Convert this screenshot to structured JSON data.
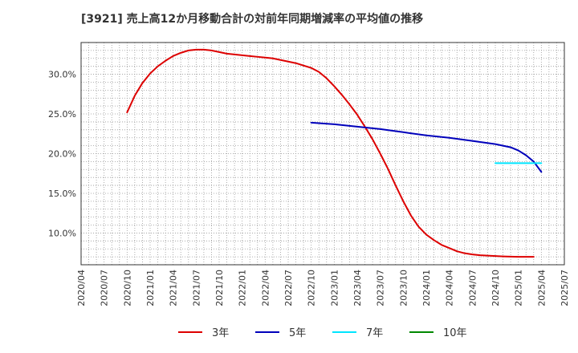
{
  "chart_data": {
    "type": "line",
    "title": "[3921]  売上高12か月移動合計の対前年同期増減率の平均値の推移",
    "xlabel": "",
    "ylabel": "",
    "x_ticks": [
      "2020/04",
      "2020/07",
      "2020/10",
      "2021/01",
      "2021/04",
      "2021/07",
      "2021/10",
      "2022/01",
      "2022/04",
      "2022/07",
      "2022/10",
      "2023/01",
      "2023/04",
      "2023/07",
      "2023/10",
      "2024/01",
      "2024/04",
      "2024/07",
      "2024/10",
      "2025/01",
      "2025/04",
      "2025/07"
    ],
    "y_ticks": [
      "10.0%",
      "15.0%",
      "20.0%",
      "25.0%",
      "30.0%"
    ],
    "y_tick_values": [
      10,
      15,
      20,
      25,
      30
    ],
    "ylim": [
      6.0,
      34.0
    ],
    "xlim_month_index": [
      0,
      63
    ],
    "grid": true,
    "legend_position": "bottom",
    "series": [
      {
        "name": "3年",
        "color": "#dd0000",
        "points": [
          [
            6,
            25.2
          ],
          [
            7,
            27.3
          ],
          [
            8,
            28.9
          ],
          [
            9,
            30.1
          ],
          [
            10,
            31.0
          ],
          [
            11,
            31.7
          ],
          [
            12,
            32.3
          ],
          [
            13,
            32.7
          ],
          [
            14,
            33.0
          ],
          [
            15,
            33.1
          ],
          [
            16,
            33.1
          ],
          [
            17,
            33.0
          ],
          [
            18,
            32.8
          ],
          [
            19,
            32.6
          ],
          [
            20,
            32.5
          ],
          [
            21,
            32.4
          ],
          [
            22,
            32.3
          ],
          [
            23,
            32.2
          ],
          [
            24,
            32.1
          ],
          [
            25,
            32.0
          ],
          [
            26,
            31.8
          ],
          [
            27,
            31.6
          ],
          [
            28,
            31.4
          ],
          [
            29,
            31.1
          ],
          [
            30,
            30.8
          ],
          [
            31,
            30.3
          ],
          [
            32,
            29.5
          ],
          [
            33,
            28.5
          ],
          [
            34,
            27.4
          ],
          [
            35,
            26.2
          ],
          [
            36,
            24.9
          ],
          [
            37,
            23.4
          ],
          [
            38,
            21.8
          ],
          [
            39,
            20.0
          ],
          [
            40,
            18.1
          ],
          [
            41,
            16.0
          ],
          [
            42,
            14.0
          ],
          [
            43,
            12.2
          ],
          [
            44,
            10.8
          ],
          [
            45,
            9.8
          ],
          [
            46,
            9.1
          ],
          [
            47,
            8.5
          ],
          [
            48,
            8.1
          ],
          [
            49,
            7.7
          ],
          [
            50,
            7.45
          ],
          [
            51,
            7.3
          ],
          [
            52,
            7.2
          ],
          [
            53,
            7.15
          ],
          [
            54,
            7.1
          ],
          [
            55,
            7.05
          ],
          [
            56,
            7.02
          ],
          [
            57,
            7.0
          ],
          [
            58,
            7.0
          ],
          [
            59,
            7.0
          ]
        ]
      },
      {
        "name": "5年",
        "color": "#0000bb",
        "points": [
          [
            30,
            23.9
          ],
          [
            33,
            23.7
          ],
          [
            36,
            23.4
          ],
          [
            39,
            23.1
          ],
          [
            42,
            22.7
          ],
          [
            45,
            22.3
          ],
          [
            48,
            22.0
          ],
          [
            51,
            21.6
          ],
          [
            54,
            21.2
          ],
          [
            55,
            21.0
          ],
          [
            56,
            20.8
          ],
          [
            57,
            20.4
          ],
          [
            58,
            19.8
          ],
          [
            59,
            19.0
          ],
          [
            60,
            17.7
          ]
        ]
      },
      {
        "name": "7年",
        "color": "#00e5ff",
        "points": [
          [
            54,
            18.8
          ],
          [
            60,
            18.8
          ]
        ]
      },
      {
        "name": "10年",
        "color": "#008800",
        "points": []
      }
    ]
  }
}
